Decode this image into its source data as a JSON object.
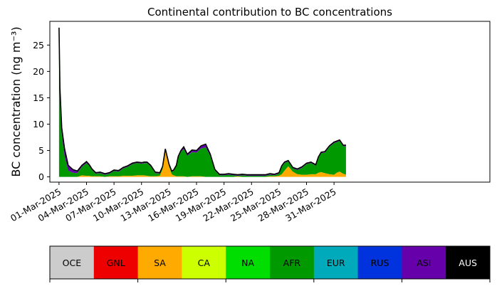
{
  "chart_data": {
    "type": "area",
    "title": "Continental contribution to BC concentrations",
    "ylabel": "BC concentration (ng m⁻³)",
    "xlabel": "",
    "ylim": [
      -1,
      29.5
    ],
    "xlim": [
      -1,
      47
    ],
    "yticks": [
      0,
      5,
      10,
      15,
      20,
      25
    ],
    "xticks": [
      {
        "x": 0,
        "label": "01-Mar-2025"
      },
      {
        "x": 3,
        "label": "04-Mar-2025"
      },
      {
        "x": 6,
        "label": "07-Mar-2025"
      },
      {
        "x": 9,
        "label": "10-Mar-2025"
      },
      {
        "x": 12,
        "label": "13-Mar-2025"
      },
      {
        "x": 15,
        "label": "16-Mar-2025"
      },
      {
        "x": 18,
        "label": "19-Mar-2025"
      },
      {
        "x": 21,
        "label": "22-Mar-2025"
      },
      {
        "x": 24,
        "label": "25-Mar-2025"
      },
      {
        "x": 27,
        "label": "28-Mar-2025"
      },
      {
        "x": 30,
        "label": "31-Mar-2025"
      }
    ],
    "x_days_from_01_Mar": [
      0,
      0.1,
      0.3,
      0.6,
      1,
      1.5,
      2,
      2.5,
      3,
      3.3,
      3.6,
      4,
      4.5,
      5,
      5.5,
      6,
      6.5,
      7,
      7.5,
      8,
      8.5,
      9,
      9.3,
      9.6,
      10,
      10.5,
      11,
      11.3,
      11.6,
      12,
      12.3,
      12.5,
      12.8,
      13,
      13.3,
      13.6,
      14,
      14.5,
      15,
      15.5,
      16,
      16.5,
      17,
      17.5,
      18,
      18.5,
      19,
      19.5,
      20,
      20.5,
      21,
      21.5,
      22,
      22.5,
      23,
      23.5,
      24,
      24.3,
      24.6,
      25,
      25.5,
      26,
      26.5,
      27,
      27.5,
      28,
      28.3,
      28.6,
      29,
      29.5,
      30,
      30.3,
      30.6,
      31,
      31.3
    ],
    "series": [
      {
        "name": "SA",
        "values": [
          0,
          0,
          0,
          0,
          0,
          0,
          0,
          0.3,
          0.2,
          0.2,
          0.1,
          0.1,
          0.1,
          0,
          0.1,
          0.1,
          0.1,
          0.2,
          0.2,
          0.2,
          0.3,
          0.3,
          0.3,
          0.2,
          0.1,
          0.1,
          0.2,
          1.5,
          5,
          2,
          0.5,
          0.3,
          0.1,
          0.1,
          0.1,
          0.1,
          0,
          0.1,
          0.1,
          0.1,
          0,
          0,
          0,
          0,
          0,
          0,
          0,
          0.1,
          0,
          0,
          0,
          0,
          0,
          0,
          0.1,
          0.1,
          0.2,
          0.5,
          1.2,
          2,
          1,
          0.5,
          0.4,
          0.4,
          0.5,
          0.5,
          0.8,
          0.9,
          0.7,
          0.5,
          0.4,
          0.8,
          1.0,
          0.6,
          0.4
        ]
      },
      {
        "name": "AFR",
        "values": [
          25,
          15,
          8,
          4,
          1.2,
          0.8,
          0.7,
          1.6,
          2.4,
          1.9,
          1.2,
          0.5,
          0.6,
          0.4,
          0.5,
          1.0,
          0.9,
          1.4,
          1.7,
          2.2,
          2.3,
          2.2,
          2.3,
          2.4,
          1.9,
          0.6,
          0.4,
          0.3,
          0.1,
          0.2,
          0.4,
          0.8,
          1.9,
          3.6,
          4.6,
          5.2,
          4.0,
          4.6,
          4.5,
          5.3,
          5.6,
          4.0,
          1.2,
          0.3,
          0.3,
          0.4,
          0.3,
          0.1,
          0.3,
          0.2,
          0.2,
          0.2,
          0.2,
          0.2,
          0.3,
          0.2,
          0.4,
          1.4,
          1.4,
          0.9,
          0.6,
          0.8,
          1.3,
          2.0,
          2.1,
          1.6,
          2.8,
          3.6,
          3.9,
          5.2,
          6.0,
          5.8,
          5.8,
          5.2,
          5.4
        ]
      },
      {
        "name": "ASI",
        "values": [
          1.5,
          0.9,
          1,
          1.2,
          0.9,
          0.5,
          0.3,
          0.2,
          0.2,
          0.1,
          0.1,
          0.1,
          0.1,
          0.1,
          0.1,
          0.1,
          0.1,
          0.1,
          0.1,
          0.1,
          0.1,
          0.1,
          0.1,
          0.1,
          0.1,
          0.1,
          0.1,
          0.1,
          0.1,
          0.1,
          0.1,
          0.1,
          0.1,
          0.1,
          0.2,
          0.3,
          0.2,
          0.3,
          0.3,
          0.4,
          0.5,
          0.2,
          0.1,
          0.1,
          0.1,
          0.1,
          0.1,
          0.1,
          0.1,
          0.1,
          0.1,
          0.1,
          0.1,
          0.1,
          0.1,
          0.1,
          0.1,
          0.1,
          0.1,
          0.1,
          0.1,
          0.1,
          0.1,
          0.1,
          0.1,
          0.1,
          0.1,
          0.1,
          0.1,
          0.1,
          0.1,
          0.1,
          0.1,
          0.1,
          0.1
        ]
      },
      {
        "name": "AUS",
        "values": [
          1.8,
          0.8,
          0.3,
          0.2,
          0.1,
          0.1,
          0.1,
          0.1,
          0.1,
          0.1,
          0.1,
          0.1,
          0.1,
          0.1,
          0.1,
          0.1,
          0.1,
          0.1,
          0.1,
          0.1,
          0.1,
          0.1,
          0.1,
          0.1,
          0.1,
          0.1,
          0.1,
          0.1,
          0.1,
          0.1,
          0.1,
          0.1,
          0.1,
          0.1,
          0.1,
          0.1,
          0.1,
          0.1,
          0.1,
          0.1,
          0.1,
          0.1,
          0.1,
          0.1,
          0.1,
          0.1,
          0.1,
          0.1,
          0.1,
          0.1,
          0.1,
          0.1,
          0.1,
          0.1,
          0.1,
          0.1,
          0.1,
          0.1,
          0.1,
          0.1,
          0.1,
          0.1,
          0.1,
          0.1,
          0.1,
          0.1,
          0.1,
          0.1,
          0.1,
          0.1,
          0.1,
          0.1,
          0.1,
          0.1,
          0.1
        ]
      }
    ],
    "stack_colors": {
      "SA": "#ffaa00",
      "AFR": "#009900",
      "ASI": "#6600aa",
      "AUS": "#000000"
    },
    "legend": [
      {
        "name": "OCE",
        "color": "#cccccc",
        "text_color": "#000000"
      },
      {
        "name": "GNL",
        "color": "#ee0000",
        "text_color": "#000000"
      },
      {
        "name": "SA",
        "color": "#ffaa00",
        "text_color": "#000000"
      },
      {
        "name": "CA",
        "color": "#ccff00",
        "text_color": "#000000"
      },
      {
        "name": "NA",
        "color": "#00dd00",
        "text_color": "#000000"
      },
      {
        "name": "AFR",
        "color": "#009900",
        "text_color": "#000000"
      },
      {
        "name": "EUR",
        "color": "#00aabb",
        "text_color": "#000000"
      },
      {
        "name": "RUS",
        "color": "#0033dd",
        "text_color": "#000000"
      },
      {
        "name": "ASI",
        "color": "#6600aa",
        "text_color": "#000000"
      },
      {
        "name": "AUS",
        "color": "#000000",
        "text_color": "#ffffff"
      }
    ],
    "grid": false,
    "legend_placement": "bottom"
  }
}
